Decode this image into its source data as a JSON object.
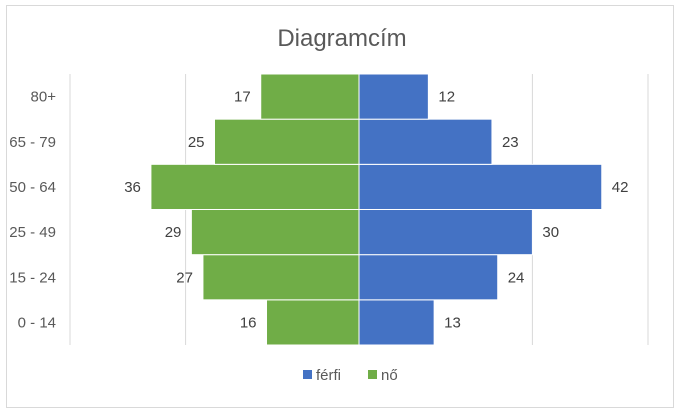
{
  "chart_data": {
    "type": "bar",
    "orientation": "horizontal",
    "title": "Diagramcím",
    "categories": [
      "0 - 14",
      "15 - 24",
      "25 - 49",
      "50 - 64",
      "65 - 79",
      "80+"
    ],
    "series": [
      {
        "name": "férfi",
        "values": [
          13,
          24,
          30,
          42,
          23,
          12
        ],
        "color": "#4472c4",
        "side": "right"
      },
      {
        "name": "nő",
        "values": [
          16,
          27,
          29,
          36,
          25,
          17
        ],
        "color": "#70ad47",
        "side": "left"
      }
    ],
    "xlim": [
      -50,
      50
    ],
    "grid": true,
    "legend": "bottom"
  }
}
